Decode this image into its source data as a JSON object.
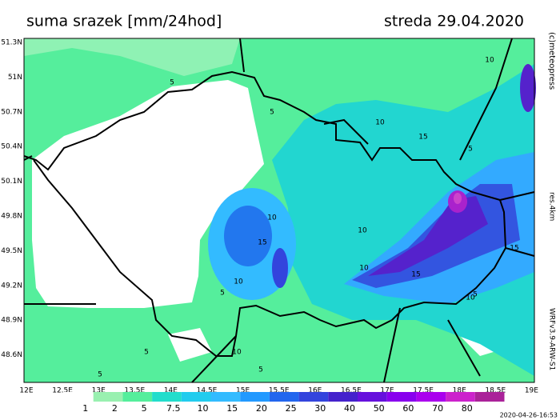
{
  "header": {
    "title": "suma srazek [mm/24hod]",
    "date": "streda 29.04.2020"
  },
  "map": {
    "lat_labels": [
      "51.3N",
      "51N",
      "50.7N",
      "50.4N",
      "50.1N",
      "49.8N",
      "49.5N",
      "49.2N",
      "48.9N",
      "48.6N"
    ],
    "lon_labels": [
      "12E",
      "12.5E",
      "13E",
      "13.5E",
      "14E",
      "14.5E",
      "15E",
      "15.5E",
      "16E",
      "16.5E",
      "17E",
      "17.5E",
      "18E",
      "18.5E",
      "19E"
    ],
    "contour_labels": [
      "5",
      "5",
      "10",
      "15",
      "10",
      "5",
      "10",
      "15",
      "10",
      "5",
      "10",
      "15",
      "10",
      "5",
      "10",
      "10",
      "5",
      "5",
      "5",
      "15"
    ]
  },
  "legend": {
    "labels": [
      "1",
      "2",
      "5",
      "7.5",
      "10",
      "15",
      "20",
      "25",
      "30",
      "40",
      "50",
      "60",
      "70",
      "80"
    ]
  },
  "credits": {
    "copyright": "(c)meteopress",
    "resolution": "res.4km",
    "model": "WRFv3.9-ARW-S1",
    "timestamp": "2020-04-26-16:53"
  }
}
